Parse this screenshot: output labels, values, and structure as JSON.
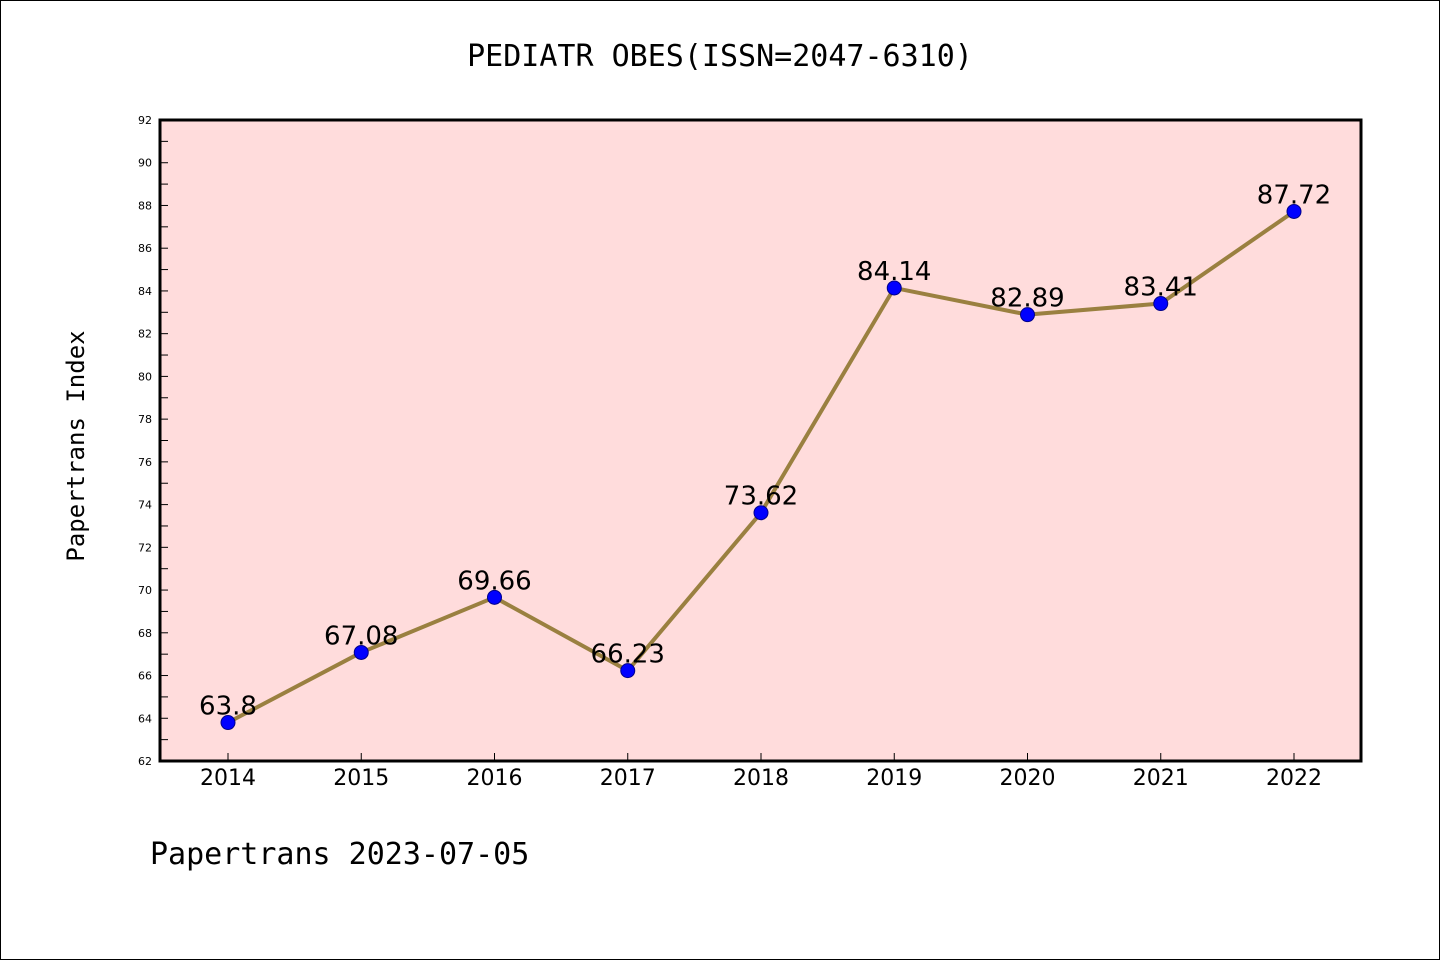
{
  "chart_data": {
    "type": "line",
    "title": "PEDIATR OBES(ISSN=2047-6310)",
    "xlabel": "",
    "ylabel": "Papertrans Index",
    "categories": [
      "2014",
      "2015",
      "2016",
      "2017",
      "2018",
      "2019",
      "2020",
      "2021",
      "2022"
    ],
    "series": [
      {
        "values": [
          63.8,
          67.08,
          69.66,
          66.23,
          73.62,
          84.14,
          82.89,
          83.41,
          87.72
        ]
      }
    ],
    "data_labels": [
      "63.8",
      "67.08",
      "69.66",
      "66.23",
      "73.62",
      "84.14",
      "82.89",
      "83.41",
      "87.72"
    ],
    "ylim": [
      62,
      92
    ],
    "yticks": [
      "62",
      "64",
      "66",
      "68",
      "70",
      "72",
      "74",
      "76",
      "78",
      "80",
      "82",
      "84",
      "86",
      "88",
      "90",
      "92"
    ],
    "grid": false,
    "legend": "none",
    "colors": {
      "plot_background": "#ffdcdc",
      "line": "#9a8040",
      "marker": "#0000ff"
    }
  },
  "footer": {
    "text": "Papertrans 2023-07-05"
  }
}
